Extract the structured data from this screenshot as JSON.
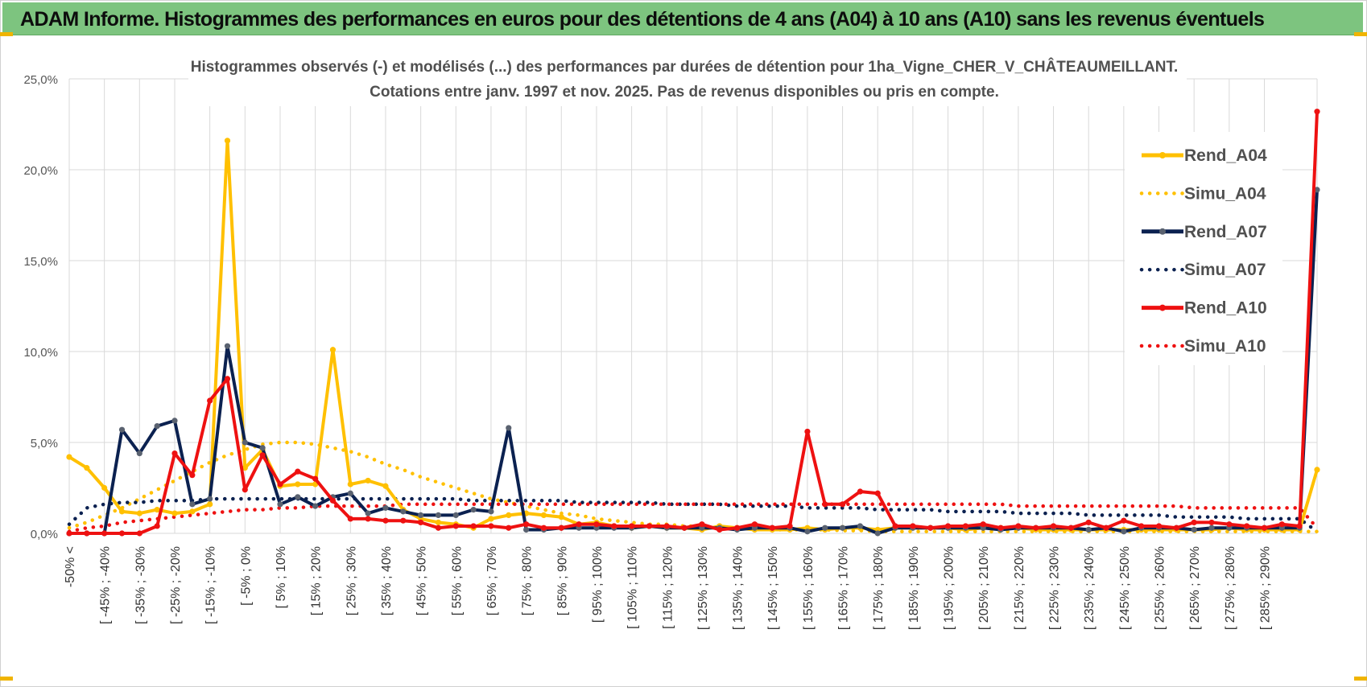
{
  "banner": {
    "title": "ADAM Informe. Histogrammes des performances en euros pour des détentions de 4 ans (A04) à 10 ans (A10) sans les revenus éventuels"
  },
  "colors": {
    "banner_bg": "#7dc47f",
    "A04": "#ffc000",
    "A07": "#0b2150",
    "A10": "#ee1111",
    "grid": "#d9d9d9",
    "marker_gray": "#5a6270"
  },
  "chart_data": {
    "type": "line",
    "title": "Histogrammes observés (-) et modélisés (...) des performances par durées de détention pour 1ha_Vigne_CHER_V_CHÂTEAUMEILLANT.",
    "subtitle": "Cotations entre janv. 1997 et nov. 2025. Pas de revenus disponibles ou pris en compte.",
    "xlabel": "",
    "ylabel": "",
    "ylim": [
      0,
      25
    ],
    "y_ticks": [
      "0,0%",
      "5,0%",
      "10,0%",
      "15,0%",
      "20,0%",
      "25,0%"
    ],
    "grid": true,
    "legend_position": "right",
    "x_tick_labels": [
      "-50% <",
      "[ -45% ; -40%",
      "[ -35% ; -30%",
      "[ -25% ; -20%",
      "[ -15% ; -10%",
      "[ -5% ; 0%",
      "[ 5% ; 10%",
      "[ 15% ; 20%",
      "[ 25% ; 30%",
      "[ 35% ; 40%",
      "[ 45% ; 50%",
      "[ 55% ; 60%",
      "[ 65% ; 70%",
      "[ 75% ; 80%",
      "[ 85% ; 90%",
      "[ 95% ; 100%",
      "[ 105% ; 110%",
      "[ 115% ; 120%",
      "[ 125% ; 130%",
      "[ 135% ; 140%",
      "[ 145% ; 150%",
      "[ 155% ; 160%",
      "[ 165% ; 170%",
      "[ 175% ; 180%",
      "[ 185% ; 190%",
      "[ 195% ; 200%",
      "[ 205% ; 210%",
      "[ 215% ; 220%",
      "[ 225% ; 230%",
      "[ 235% ; 240%",
      "[ 245% ; 250%",
      "[ 255% ; 260%",
      "[ 265% ; 270%",
      "[ 275% ; 280%",
      "[ 285% ; 290%"
    ],
    "series": [
      {
        "name": "Rend_A04",
        "style": "solid",
        "color": "#ffc000",
        "values": [
          4.2,
          3.6,
          2.5,
          1.2,
          1.1,
          1.3,
          1.1,
          1.2,
          1.6,
          21.6,
          3.6,
          4.6,
          2.6,
          2.7,
          2.7,
          10.1,
          2.7,
          2.9,
          2.6,
          1.3,
          0.8,
          0.6,
          0.5,
          0.3,
          0.8,
          1.0,
          1.1,
          1.0,
          0.9,
          0.5,
          0.6,
          0.4,
          0.3,
          0.4,
          0.3,
          0.3,
          0.2,
          0.4,
          0.3,
          0.2,
          0.2,
          0.2,
          0.3,
          0.2,
          0.3,
          0.3,
          0.2,
          0.3,
          0.3,
          0.3,
          0.3,
          0.2,
          0.3,
          0.3,
          0.3,
          0.2,
          0.2,
          0.2,
          0.2,
          0.2,
          0.2,
          0.2,
          0.2,
          0.2,
          0.2,
          0.2,
          0.3,
          0.2,
          0.2,
          0.2,
          0.2,
          3.5
        ]
      },
      {
        "name": "Simu_A04",
        "style": "dotted",
        "color": "#ffc000",
        "values": [
          0.3,
          0.6,
          1.0,
          1.4,
          1.9,
          2.4,
          2.9,
          3.4,
          3.9,
          4.3,
          4.6,
          4.9,
          5.0,
          5.0,
          4.9,
          4.7,
          4.5,
          4.2,
          3.8,
          3.5,
          3.1,
          2.8,
          2.5,
          2.2,
          1.9,
          1.7,
          1.5,
          1.3,
          1.1,
          1.0,
          0.8,
          0.7,
          0.6,
          0.5,
          0.5,
          0.4,
          0.4,
          0.3,
          0.3,
          0.25,
          0.2,
          0.2,
          0.2,
          0.2,
          0.15,
          0.15,
          0.1,
          0.1,
          0.1,
          0.1,
          0.1,
          0.1,
          0.1,
          0.1,
          0.1,
          0.1,
          0.1,
          0.1,
          0.1,
          0.1,
          0.1,
          0.1,
          0.1,
          0.1,
          0.1,
          0.1,
          0.1,
          0.1,
          0.1,
          0.1,
          0.1,
          0.1
        ]
      },
      {
        "name": "Rend_A07",
        "style": "solid",
        "color": "#0b2150",
        "values": [
          0.0,
          0.0,
          0.0,
          5.7,
          4.4,
          5.9,
          6.2,
          1.6,
          1.9,
          10.3,
          5.0,
          4.7,
          1.6,
          2.0,
          1.5,
          2.0,
          2.2,
          1.1,
          1.4,
          1.2,
          1.0,
          1.0,
          1.0,
          1.3,
          1.2,
          5.8,
          0.2,
          0.2,
          0.3,
          0.3,
          0.3,
          0.3,
          0.3,
          0.4,
          0.3,
          0.3,
          0.3,
          0.3,
          0.2,
          0.3,
          0.3,
          0.3,
          0.1,
          0.3,
          0.3,
          0.4,
          0.0,
          0.3,
          0.3,
          0.3,
          0.3,
          0.3,
          0.3,
          0.2,
          0.3,
          0.3,
          0.3,
          0.3,
          0.2,
          0.3,
          0.1,
          0.3,
          0.3,
          0.3,
          0.2,
          0.3,
          0.3,
          0.3,
          0.3,
          0.3,
          0.3,
          18.9
        ]
      },
      {
        "name": "Simu_A07",
        "style": "dotted",
        "color": "#0b2150",
        "values": [
          0.5,
          1.4,
          1.6,
          1.7,
          1.7,
          1.8,
          1.8,
          1.8,
          1.9,
          1.9,
          1.9,
          1.9,
          1.9,
          1.9,
          1.9,
          1.9,
          1.9,
          1.9,
          1.9,
          1.9,
          1.9,
          1.9,
          1.9,
          1.8,
          1.8,
          1.8,
          1.8,
          1.8,
          1.8,
          1.7,
          1.7,
          1.7,
          1.7,
          1.7,
          1.6,
          1.6,
          1.6,
          1.6,
          1.5,
          1.5,
          1.5,
          1.5,
          1.4,
          1.4,
          1.4,
          1.4,
          1.3,
          1.3,
          1.3,
          1.3,
          1.2,
          1.2,
          1.2,
          1.2,
          1.1,
          1.1,
          1.1,
          1.1,
          1.0,
          1.0,
          1.0,
          1.0,
          1.0,
          0.9,
          0.9,
          0.9,
          0.9,
          0.8,
          0.8,
          0.8,
          0.8,
          0.1
        ]
      },
      {
        "name": "Rend_A10",
        "style": "solid",
        "color": "#ee1111",
        "values": [
          0.0,
          0.0,
          0.0,
          0.0,
          0.0,
          0.4,
          4.4,
          3.2,
          7.3,
          8.5,
          2.4,
          4.3,
          2.7,
          3.4,
          3.0,
          1.8,
          0.8,
          0.8,
          0.7,
          0.7,
          0.6,
          0.3,
          0.4,
          0.4,
          0.4,
          0.3,
          0.5,
          0.3,
          0.3,
          0.5,
          0.5,
          0.4,
          0.4,
          0.4,
          0.4,
          0.3,
          0.5,
          0.2,
          0.3,
          0.5,
          0.3,
          0.4,
          5.6,
          1.6,
          1.6,
          2.3,
          2.2,
          0.4,
          0.4,
          0.3,
          0.4,
          0.4,
          0.5,
          0.3,
          0.4,
          0.3,
          0.4,
          0.3,
          0.6,
          0.3,
          0.7,
          0.4,
          0.4,
          0.3,
          0.6,
          0.6,
          0.5,
          0.4,
          0.3,
          0.5,
          0.4,
          23.2
        ]
      },
      {
        "name": "Simu_A10",
        "style": "dotted",
        "color": "#ee1111",
        "values": [
          0.1,
          0.3,
          0.4,
          0.6,
          0.7,
          0.8,
          0.9,
          1.0,
          1.1,
          1.2,
          1.3,
          1.3,
          1.4,
          1.4,
          1.5,
          1.5,
          1.5,
          1.5,
          1.5,
          1.6,
          1.6,
          1.6,
          1.6,
          1.6,
          1.6,
          1.6,
          1.6,
          1.6,
          1.6,
          1.6,
          1.6,
          1.6,
          1.6,
          1.6,
          1.6,
          1.6,
          1.6,
          1.6,
          1.6,
          1.6,
          1.6,
          1.6,
          1.6,
          1.6,
          1.6,
          1.6,
          1.6,
          1.6,
          1.6,
          1.6,
          1.6,
          1.6,
          1.6,
          1.6,
          1.5,
          1.5,
          1.5,
          1.5,
          1.5,
          1.5,
          1.5,
          1.5,
          1.5,
          1.5,
          1.4,
          1.4,
          1.4,
          1.4,
          1.4,
          1.4,
          1.4,
          0.3
        ]
      }
    ]
  }
}
